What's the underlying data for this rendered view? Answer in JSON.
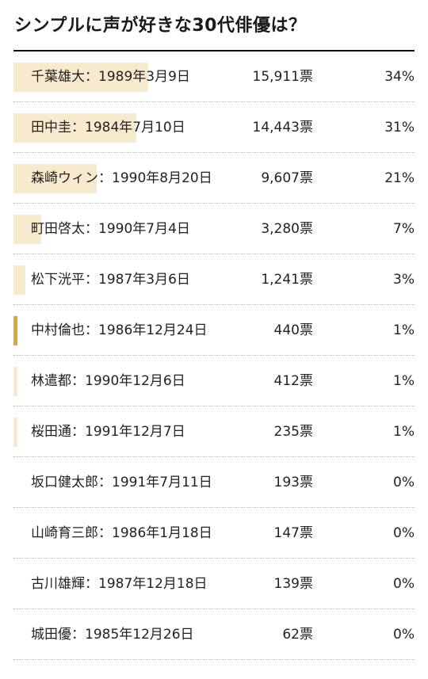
{
  "title": "シンプルに声が好きな30代俳優は？",
  "colors": {
    "bar": "#f8ebcd",
    "bar_highlight": "#d8a83a",
    "rule": "#111111"
  },
  "chart_data": {
    "type": "table",
    "columns": [
      "name",
      "votes",
      "percent"
    ],
    "rows": [
      {
        "name": "千葉雄大：1989年3月9日",
        "votes": "15,911票",
        "percent": "34%",
        "share": 0.34,
        "highlight": false
      },
      {
        "name": "田中圭：1984年7月10日",
        "votes": "14,443票",
        "percent": "31%",
        "share": 0.31,
        "highlight": false
      },
      {
        "name": "森崎ウィン：1990年8月20日",
        "votes": "9,607票",
        "percent": "21%",
        "share": 0.21,
        "highlight": false
      },
      {
        "name": "町田啓太：1990年7月4日",
        "votes": "3,280票",
        "percent": "7%",
        "share": 0.07,
        "highlight": false
      },
      {
        "name": "松下洸平：1987年3月6日",
        "votes": "1,241票",
        "percent": "3%",
        "share": 0.03,
        "highlight": false
      },
      {
        "name": "中村倫也：1986年12月24日",
        "votes": "440票",
        "percent": "1%",
        "share": 0.01,
        "highlight": true
      },
      {
        "name": "林遣都：1990年12月6日",
        "votes": "412票",
        "percent": "1%",
        "share": 0.01,
        "highlight": false
      },
      {
        "name": "桜田通：1991年12月7日",
        "votes": "235票",
        "percent": "1%",
        "share": 0.01,
        "highlight": false
      },
      {
        "name": "坂口健太郎：1991年7月11日",
        "votes": "193票",
        "percent": "0%",
        "share": 0.0,
        "highlight": false
      },
      {
        "name": "山崎育三郎：1986年1月18日",
        "votes": "147票",
        "percent": "0%",
        "share": 0.0,
        "highlight": false
      },
      {
        "name": "古川雄輝：1987年12月18日",
        "votes": "139票",
        "percent": "0%",
        "share": 0.0,
        "highlight": false
      },
      {
        "name": "城田優：1985年12月26日",
        "votes": "62票",
        "percent": "0%",
        "share": 0.0,
        "highlight": false
      }
    ]
  }
}
